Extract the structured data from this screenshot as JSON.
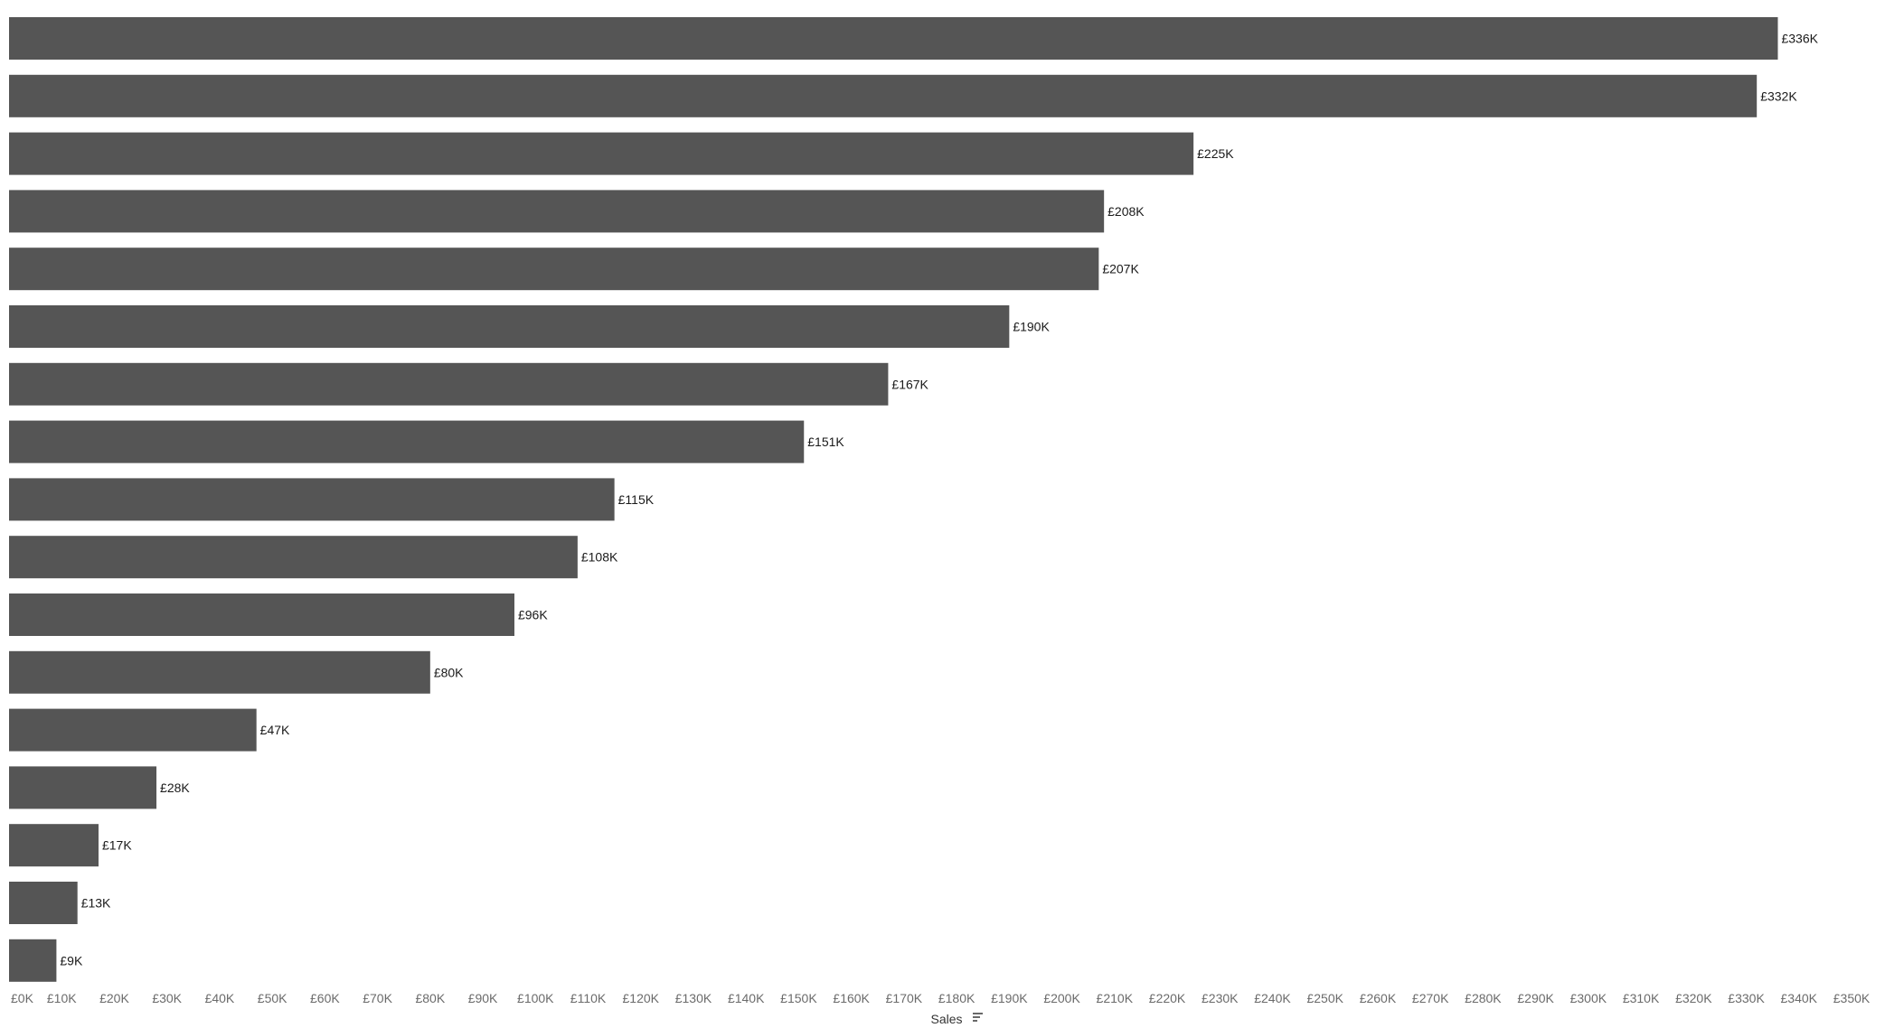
{
  "chart_data": {
    "type": "bar",
    "orientation": "horizontal",
    "values": [
      336,
      332,
      225,
      208,
      207,
      190,
      167,
      151,
      115,
      108,
      96,
      80,
      47,
      28,
      17,
      13,
      9
    ],
    "data_labels": [
      "£336K",
      "£332K",
      "£225K",
      "£208K",
      "£207K",
      "£190K",
      "£167K",
      "£151K",
      "£115K",
      "£108K",
      "£96K",
      "£80K",
      "£47K",
      "£28K",
      "£17K",
      "£13K",
      "£9K"
    ],
    "value_unit": "£K",
    "xlim": [
      0,
      350
    ],
    "x_ticks": [
      0,
      10,
      20,
      30,
      40,
      50,
      60,
      70,
      80,
      90,
      100,
      110,
      120,
      130,
      140,
      150,
      160,
      170,
      180,
      190,
      200,
      210,
      220,
      230,
      240,
      250,
      260,
      270,
      280,
      290,
      300,
      310,
      320,
      330,
      340,
      350
    ],
    "x_tick_labels": [
      "£0K",
      "£10K",
      "£20K",
      "£30K",
      "£40K",
      "£50K",
      "£60K",
      "£70K",
      "£80K",
      "£90K",
      "£100K",
      "£110K",
      "£120K",
      "£130K",
      "£140K",
      "£150K",
      "£160K",
      "£170K",
      "£180K",
      "£190K",
      "£200K",
      "£210K",
      "£220K",
      "£230K",
      "£240K",
      "£250K",
      "£260K",
      "£270K",
      "£280K",
      "£290K",
      "£300K",
      "£310K",
      "£320K",
      "£330K",
      "£340K",
      "£350K"
    ],
    "xlabel": "Sales",
    "ylabel": "",
    "title": "",
    "grid": false,
    "bar_color": "#555555",
    "sort": "descending"
  },
  "icons": {
    "axis_sort": "sort-descending-icon"
  }
}
